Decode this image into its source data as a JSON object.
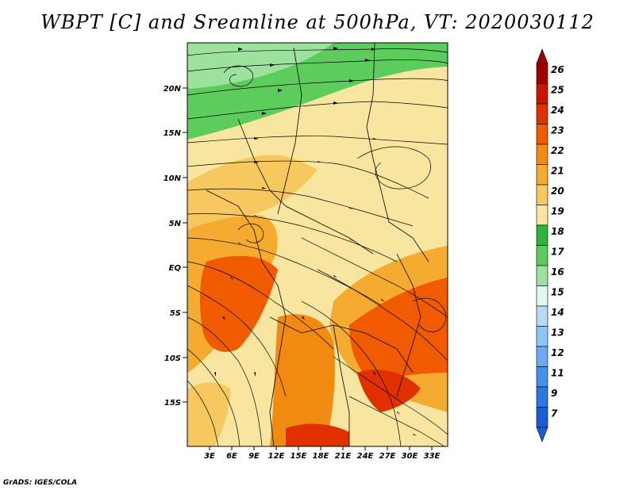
{
  "title": "WBPT [C] and Sreamline at 500hPa, VT: 2020030112",
  "credit": "GrADS: IGES/COLA",
  "lat_labels": [
    "20N",
    "15N",
    "10N",
    "5N",
    "EQ",
    "5S",
    "10S",
    "15S"
  ],
  "lon_labels": [
    "3E",
    "6E",
    "9E",
    "12E",
    "15E",
    "18E",
    "21E",
    "24E",
    "27E",
    "30E",
    "33E"
  ],
  "colorbar": {
    "labels": [
      "26",
      "25",
      "24",
      "23",
      "22",
      "21",
      "20",
      "19",
      "18",
      "17",
      "16",
      "15",
      "14",
      "13",
      "12",
      "11",
      "9",
      "7"
    ],
    "colors": [
      "#a00000",
      "#c81400",
      "#e03000",
      "#f05a00",
      "#f08a10",
      "#f5aa30",
      "#f7c860",
      "#f8e6a0",
      "#2eb43c",
      "#5ccc5c",
      "#9ce29c",
      "#e2f6f2",
      "#b6daf6",
      "#8ec6f2",
      "#6aaaf0",
      "#4690ea",
      "#2c78e2",
      "#1e5cd6"
    ]
  }
}
